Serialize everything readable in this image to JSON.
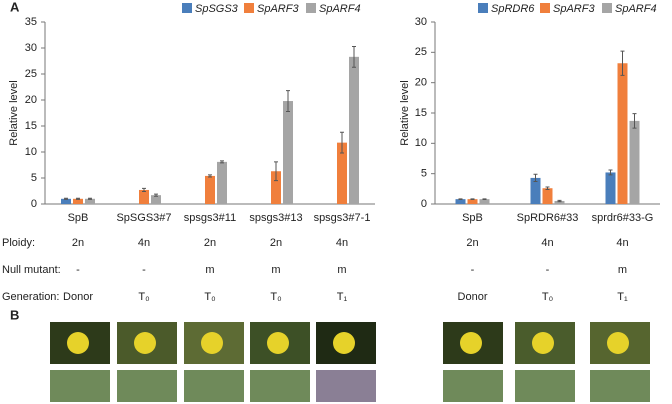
{
  "panel_labels": [
    "A",
    "B"
  ],
  "chart_data": [
    {
      "type": "bar",
      "y_label": "Relative level",
      "categories": [
        "SpB",
        "SpSGS3#7",
        "spsgs3#11",
        "spsgs3#13",
        "spsgs3#7-1"
      ],
      "series": [
        {
          "name": "SpSGS3",
          "color": "#4a7ebb",
          "values": [
            1,
            null,
            null,
            null,
            null
          ],
          "errors": [
            0.1,
            null,
            null,
            null,
            null
          ]
        },
        {
          "name": "SpARF3",
          "color": "#f07f3c",
          "values": [
            1,
            2.7,
            5.4,
            6.3,
            11.8
          ],
          "errors": [
            0.1,
            0.3,
            0.2,
            1.8,
            2.0
          ]
        },
        {
          "name": "SpARF4",
          "color": "#a5a5a5",
          "values": [
            1,
            1.7,
            8.1,
            19.8,
            28.3
          ],
          "errors": [
            0.1,
            0.2,
            0.2,
            2.0,
            2.0
          ]
        }
      ],
      "ylim": [
        0,
        35
      ],
      "yticks": [
        0,
        5,
        10,
        15,
        20,
        25,
        30,
        35
      ]
    },
    {
      "type": "bar",
      "y_label": "Relative level",
      "categories": [
        "SpB",
        "SpRDR6#33",
        "sprdr6#33-G"
      ],
      "series": [
        {
          "name": "SpRDR6",
          "color": "#4a7ebb",
          "values": [
            0.8,
            4.3,
            5.2
          ],
          "errors": [
            0.05,
            0.6,
            0.4
          ]
        },
        {
          "name": "SpARF3",
          "color": "#f07f3c",
          "values": [
            0.8,
            2.6,
            23.2
          ],
          "errors": [
            0.05,
            0.2,
            2.0
          ]
        },
        {
          "name": "SpARF4",
          "color": "#a5a5a5",
          "values": [
            0.8,
            0.5,
            13.7
          ],
          "errors": [
            0.05,
            0.1,
            1.2
          ]
        }
      ],
      "ylim": [
        0,
        30
      ],
      "yticks": [
        0,
        5,
        10,
        15,
        20,
        25,
        30
      ]
    }
  ],
  "table": {
    "row_labels": [
      "Ploidy:",
      "Null mutant:",
      "Generation:"
    ],
    "rows": [
      [
        "2n",
        "4n",
        "2n",
        "2n",
        "4n",
        "2n",
        "4n",
        "4n"
      ],
      [
        "-",
        "-",
        "m",
        "m",
        "m",
        "-",
        "-",
        "m"
      ],
      [
        "Donor",
        "T₀",
        "T₀",
        "T₀",
        "T₁",
        "Donor",
        "T₀",
        "T₁"
      ]
    ]
  }
}
